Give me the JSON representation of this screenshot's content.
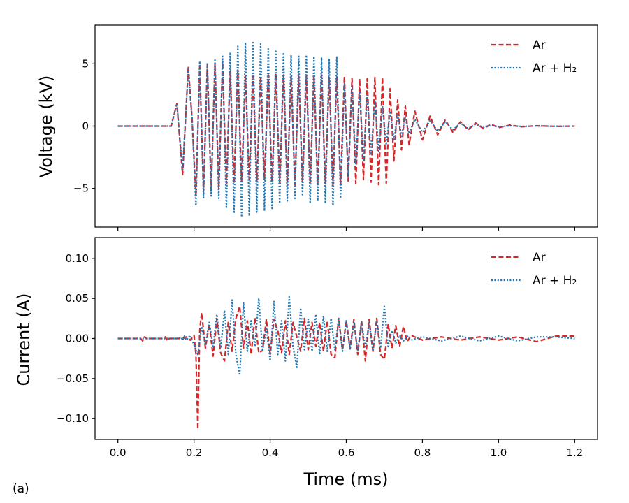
{
  "figure_label": "(a)",
  "chart_data": [
    {
      "type": "line",
      "ylabel": "Voltage (kV)",
      "xlabel": "",
      "xlim": [
        -0.06,
        1.26
      ],
      "ylim": [
        -8.1,
        8.1
      ],
      "xticks": [
        0.0,
        0.2,
        0.4,
        0.6,
        0.8,
        1.0,
        1.2
      ],
      "yticks": [
        -5,
        0,
        5
      ],
      "ytick_labels": [
        "−5",
        "0",
        "5"
      ],
      "legend": {
        "position": "top-right",
        "entries": [
          "Ar",
          "Ar + H₂"
        ]
      },
      "series": [
        {
          "name": "Ar",
          "color": "#d62728",
          "dash": "dashed",
          "x": [
            0,
            0.14,
            0.155,
            0.17,
            0.185,
            0.195,
            0.205,
            0.215,
            0.225,
            0.235,
            0.245,
            0.255,
            0.265,
            0.275,
            0.285,
            0.295,
            0.305,
            0.315,
            0.325,
            0.335,
            0.345,
            0.355,
            0.365,
            0.375,
            0.385,
            0.395,
            0.405,
            0.415,
            0.425,
            0.435,
            0.445,
            0.455,
            0.465,
            0.475,
            0.485,
            0.495,
            0.505,
            0.515,
            0.525,
            0.535,
            0.545,
            0.555,
            0.565,
            0.575,
            0.585,
            0.595,
            0.605,
            0.615,
            0.625,
            0.635,
            0.645,
            0.655,
            0.665,
            0.675,
            0.685,
            0.695,
            0.705,
            0.715,
            0.725,
            0.735,
            0.745,
            0.755,
            0.765,
            0.78,
            0.8,
            0.82,
            0.84,
            0.86,
            0.88,
            0.9,
            0.92,
            0.94,
            0.96,
            0.98,
            1.0,
            1.03,
            1.06,
            1.1,
            1.15,
            1.2
          ],
          "y": [
            0,
            0,
            1.8,
            -3.9,
            4.8,
            0.5,
            -5.6,
            4.8,
            -5.2,
            4.9,
            -5.1,
            5.0,
            -5.0,
            5.1,
            -4.6,
            4.4,
            -4.6,
            4.5,
            -4.4,
            4.1,
            -4.3,
            4.0,
            -4.4,
            4.0,
            -4.3,
            4.1,
            -4.5,
            4.2,
            -4.5,
            4.1,
            -4.6,
            4.0,
            -4.7,
            4.0,
            -4.5,
            4.1,
            -4.6,
            4.0,
            -4.7,
            4.1,
            -4.6,
            3.9,
            -4.7,
            4.0,
            -4.8,
            4.0,
            -4.4,
            3.8,
            -4.6,
            3.8,
            -4.3,
            3.8,
            -4.5,
            3.9,
            -4.7,
            3.9,
            -4.6,
            3.0,
            -2.8,
            2.1,
            -1.9,
            1.6,
            -1.5,
            1.2,
            -1.1,
            0.8,
            -0.7,
            0.5,
            -0.5,
            0.35,
            -0.3,
            0.25,
            -0.2,
            0.15,
            -0.12,
            0.08,
            -0.05,
            0.03,
            -0.02,
            0
          ]
        },
        {
          "name": "Ar + H₂",
          "color": "#1f77b4",
          "dash": "dotted",
          "x": [
            0,
            0.14,
            0.155,
            0.17,
            0.185,
            0.195,
            0.205,
            0.215,
            0.225,
            0.235,
            0.245,
            0.255,
            0.265,
            0.275,
            0.285,
            0.295,
            0.305,
            0.315,
            0.325,
            0.335,
            0.345,
            0.355,
            0.365,
            0.375,
            0.385,
            0.395,
            0.405,
            0.415,
            0.425,
            0.435,
            0.445,
            0.455,
            0.465,
            0.475,
            0.485,
            0.495,
            0.505,
            0.515,
            0.525,
            0.535,
            0.545,
            0.555,
            0.565,
            0.575,
            0.585,
            0.595,
            0.605,
            0.615,
            0.625,
            0.635,
            0.645,
            0.655,
            0.665,
            0.675,
            0.685,
            0.695,
            0.705,
            0.715,
            0.725,
            0.735,
            0.745,
            0.755,
            0.765,
            0.78,
            0.8,
            0.82,
            0.84,
            0.86,
            0.88,
            0.9,
            0.92,
            0.94,
            0.96,
            0.98,
            1.0,
            1.03,
            1.06,
            1.1,
            1.15,
            1.2
          ],
          "y": [
            0,
            0,
            1.8,
            -3.6,
            4.6,
            0.6,
            -6.4,
            5.2,
            -5.8,
            5.1,
            -5.6,
            5.4,
            -5.8,
            5.6,
            -6.6,
            5.9,
            -7.0,
            6.4,
            -7.3,
            6.7,
            -7.2,
            6.7,
            -6.9,
            6.6,
            -6.8,
            6.2,
            -6.6,
            6.0,
            -6.2,
            5.9,
            -6.0,
            5.7,
            -5.8,
            5.6,
            -5.6,
            5.7,
            -6.2,
            5.6,
            -6.0,
            5.5,
            -6.2,
            5.4,
            -6.4,
            5.6,
            -5.8,
            3.4,
            -4.0,
            3.2,
            -3.1,
            2.8,
            -2.7,
            2.5,
            -2.3,
            2.1,
            -2.0,
            1.6,
            -1.5,
            1.2,
            -1.1,
            0.9,
            -0.8,
            0.7,
            -0.6,
            0.55,
            -0.5,
            0.45,
            -0.4,
            0.35,
            -0.3,
            0.25,
            -0.2,
            0.15,
            -0.1,
            0.08,
            -0.05,
            0.03,
            -0.02,
            0.01,
            -0.01,
            0
          ]
        }
      ]
    },
    {
      "type": "line",
      "ylabel": "Current (A)",
      "xlabel": "Time (ms)",
      "xlim": [
        -0.06,
        1.26
      ],
      "ylim": [
        -0.126,
        0.126
      ],
      "xticks": [
        0.0,
        0.2,
        0.4,
        0.6,
        0.8,
        1.0,
        1.2
      ],
      "xtick_labels": [
        "0.0",
        "0.2",
        "0.4",
        "0.6",
        "0.8",
        "1.0",
        "1.2"
      ],
      "yticks": [
        -0.1,
        -0.05,
        0.0,
        0.05,
        0.1
      ],
      "ytick_labels": [
        "−0.10",
        "−0.05",
        "0.00",
        "0.05",
        "0.10"
      ],
      "legend": {
        "position": "top-right",
        "entries": [
          "Ar",
          "Ar + H₂"
        ]
      },
      "series": [
        {
          "name": "Ar",
          "color": "#d62728",
          "dash": "dashed",
          "x": [
            0,
            0.06,
            0.065,
            0.07,
            0.075,
            0.12,
            0.125,
            0.13,
            0.135,
            0.17,
            0.18,
            0.19,
            0.2,
            0.205,
            0.21,
            0.212,
            0.215,
            0.22,
            0.225,
            0.23,
            0.24,
            0.25,
            0.26,
            0.27,
            0.28,
            0.29,
            0.3,
            0.31,
            0.32,
            0.33,
            0.34,
            0.35,
            0.36,
            0.37,
            0.38,
            0.39,
            0.4,
            0.41,
            0.42,
            0.43,
            0.44,
            0.45,
            0.46,
            0.47,
            0.48,
            0.49,
            0.5,
            0.51,
            0.52,
            0.53,
            0.54,
            0.55,
            0.56,
            0.57,
            0.58,
            0.59,
            0.6,
            0.61,
            0.62,
            0.63,
            0.64,
            0.65,
            0.66,
            0.67,
            0.68,
            0.69,
            0.7,
            0.71,
            0.72,
            0.73,
            0.74,
            0.75,
            0.76,
            0.77,
            0.8,
            0.85,
            0.9,
            0.95,
            1.0,
            1.05,
            1.1,
            1.15,
            1.2
          ],
          "y": [
            0,
            0,
            -0.003,
            0.002,
            0,
            0,
            0.002,
            -0.003,
            0,
            0,
            0.002,
            -0.002,
            0.004,
            -0.02,
            -0.113,
            -0.06,
            0.01,
            0.032,
            0.01,
            -0.012,
            0.018,
            -0.022,
            0.025,
            -0.018,
            -0.028,
            0.02,
            -0.016,
            0.025,
            0.04,
            -0.012,
            0.022,
            -0.02,
            0.026,
            -0.018,
            -0.015,
            0.024,
            -0.02,
            0.024,
            0.01,
            -0.018,
            0.022,
            -0.02,
            0.02,
            0.002,
            -0.016,
            0.025,
            -0.014,
            0.02,
            -0.01,
            0.02,
            -0.016,
            0.022,
            -0.02,
            -0.024,
            0.025,
            -0.014,
            0.022,
            -0.012,
            0.024,
            -0.02,
            0.022,
            -0.028,
            0.024,
            -0.016,
            0.025,
            -0.02,
            -0.026,
            0.018,
            -0.012,
            0.016,
            -0.01,
            0.015,
            -0.004,
            0.004,
            -0.002,
            0.002,
            -0.002,
            0.002,
            -0.002,
            0.002,
            -0.004,
            0.003,
            0.003
          ]
        },
        {
          "name": "Ar + H₂",
          "color": "#1f77b4",
          "dash": "dotted",
          "x": [
            0,
            0.16,
            0.165,
            0.17,
            0.175,
            0.18,
            0.19,
            0.2,
            0.21,
            0.22,
            0.23,
            0.24,
            0.25,
            0.26,
            0.27,
            0.28,
            0.29,
            0.3,
            0.31,
            0.32,
            0.33,
            0.34,
            0.35,
            0.36,
            0.37,
            0.38,
            0.39,
            0.4,
            0.41,
            0.42,
            0.43,
            0.44,
            0.45,
            0.46,
            0.47,
            0.48,
            0.49,
            0.5,
            0.51,
            0.52,
            0.53,
            0.54,
            0.55,
            0.56,
            0.57,
            0.58,
            0.59,
            0.6,
            0.61,
            0.62,
            0.63,
            0.64,
            0.65,
            0.66,
            0.67,
            0.68,
            0.69,
            0.7,
            0.71,
            0.72,
            0.73,
            0.74,
            0.75,
            0.76,
            0.77,
            0.8,
            0.85,
            0.9,
            0.95,
            1.0,
            1.05,
            1.1,
            1.15,
            1.2
          ],
          "y": [
            0,
            0,
            0.002,
            -0.002,
            0.003,
            -0.002,
            0.004,
            -0.008,
            -0.02,
            0.015,
            -0.008,
            0.02,
            -0.01,
            0.03,
            -0.012,
            0.035,
            -0.02,
            0.048,
            -0.02,
            -0.046,
            0.045,
            -0.016,
            0.022,
            -0.01,
            0.05,
            -0.016,
            0.014,
            -0.028,
            0.046,
            -0.02,
            0.022,
            -0.028,
            0.052,
            -0.01,
            -0.036,
            0.038,
            -0.014,
            0.024,
            -0.016,
            0.03,
            -0.02,
            0.028,
            -0.016,
            0.025,
            -0.014,
            0.025,
            -0.016,
            0.022,
            -0.014,
            0.02,
            -0.016,
            0.02,
            -0.012,
            0.02,
            -0.016,
            0.022,
            -0.012,
            0.04,
            -0.01,
            0.01,
            -0.006,
            0.004,
            -0.003,
            0.003,
            -0.002,
            0.002,
            -0.003,
            0.003,
            -0.003,
            0.003,
            -0.003,
            0.002,
            0.002,
            0
          ]
        }
      ]
    }
  ]
}
